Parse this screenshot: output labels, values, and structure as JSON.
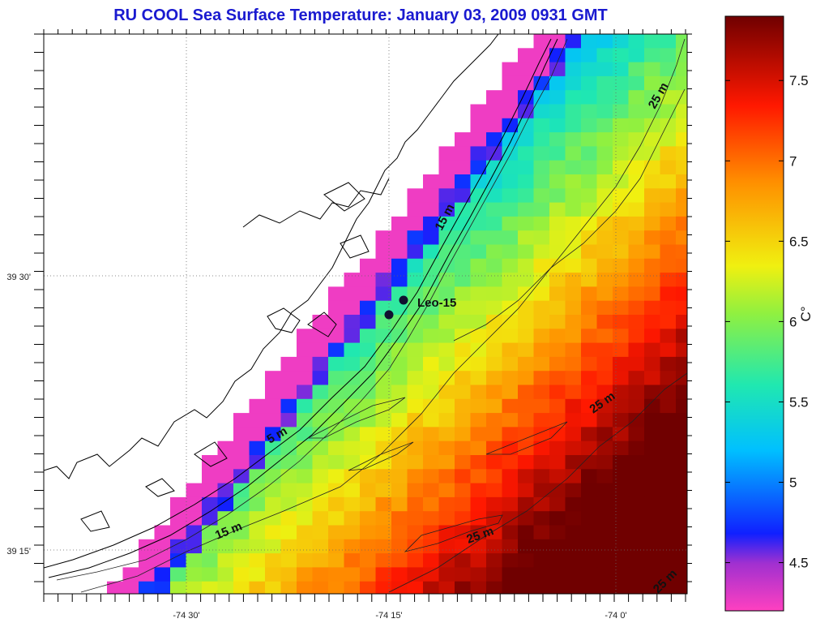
{
  "title": "RU COOL  Sea Surface Temperature:  January 03, 2009 0931 GMT",
  "axes": {
    "x_ticks": [
      "-74 30'",
      "-74 15'",
      "-74 0'"
    ],
    "y_ticks": [
      "39 30'",
      "39 15'"
    ]
  },
  "colorbar": {
    "unit_label": "C°",
    "range": [
      4.2,
      7.9
    ],
    "ticks": [
      "4.5",
      "5",
      "5.5",
      "6",
      "6.5",
      "7",
      "7.5"
    ],
    "colors": [
      "#ff40a8",
      "#c040c8",
      "#5020d8",
      "#1040ff",
      "#00b0ff",
      "#20e0c0",
      "#60f060",
      "#e0f020",
      "#ffd000",
      "#ff8000",
      "#ff2000",
      "#b00000",
      "#700000"
    ]
  },
  "map": {
    "land_color": "#ffffff",
    "coast_color": "#000000",
    "grid_style": "dotted",
    "contour_labels": [
      "5 m",
      "15 m",
      "15 m",
      "25 m",
      "25 m",
      "25 m",
      "25 m"
    ],
    "station": {
      "name": "Leo-15"
    }
  },
  "sst_field": {
    "description_of_pattern": "cold (4.5°C) near coast rising to warm (7.9°C) offshore south-east",
    "coastal_min": 4.3,
    "offshore_max": 7.9
  }
}
